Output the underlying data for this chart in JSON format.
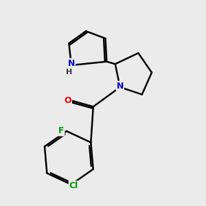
{
  "background_color": "#ebebeb",
  "bond_color": "#000000",
  "bond_width": 1.8,
  "atom_colors": {
    "N_pyrrole": "#0000cc",
    "N_pyrrolidine": "#0000cc",
    "O": "#dd0000",
    "F": "#009900",
    "Cl": "#009900",
    "H": "#444444"
  }
}
